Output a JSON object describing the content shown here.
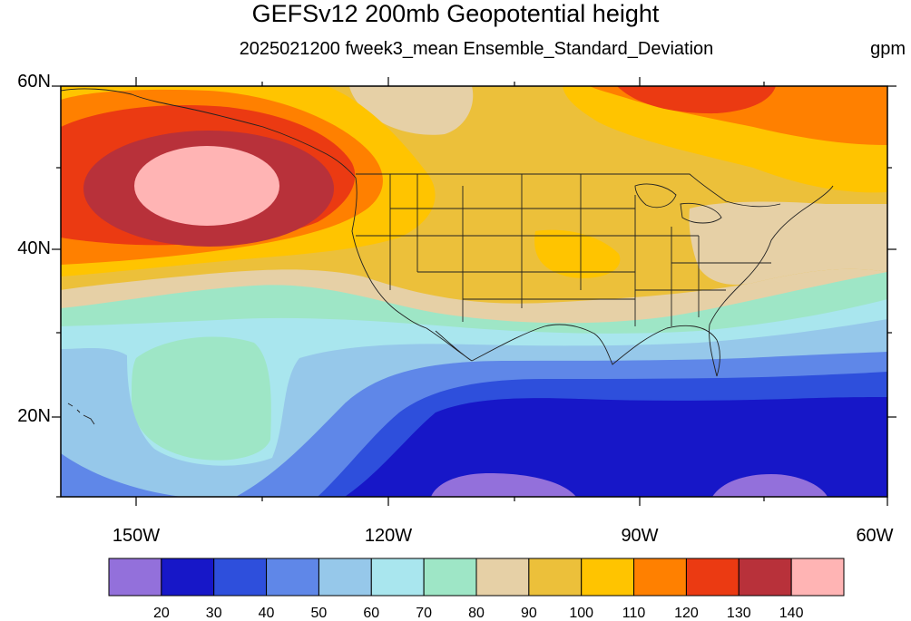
{
  "header": {
    "title": "GEFSv12 200mb Geopotential height",
    "subtitle": "2025021200 fweek3_mean Ensemble_Standard_Deviation",
    "units": "gpm"
  },
  "map": {
    "lat_labels": [
      "60N",
      "40N",
      "20N"
    ],
    "lon_labels": [
      "150W",
      "120W",
      "90W",
      "60W"
    ],
    "extent": {
      "lon_min": -159,
      "lon_max": -60,
      "lat_min": 10,
      "lat_max": 60
    }
  },
  "colorbar": {
    "colors": [
      "#9370db",
      "#1717c8",
      "#2e4fdc",
      "#5f87e8",
      "#96c8ea",
      "#a9e6ee",
      "#9ee6c6",
      "#e6d0a6",
      "#ecc03a",
      "#ffc400",
      "#ff8000",
      "#eb3a12",
      "#b8313a",
      "#ffb4b4"
    ],
    "labels": [
      "20",
      "30",
      "40",
      "50",
      "60",
      "70",
      "80",
      "90",
      "100",
      "110",
      "120",
      "130",
      "140"
    ]
  }
}
